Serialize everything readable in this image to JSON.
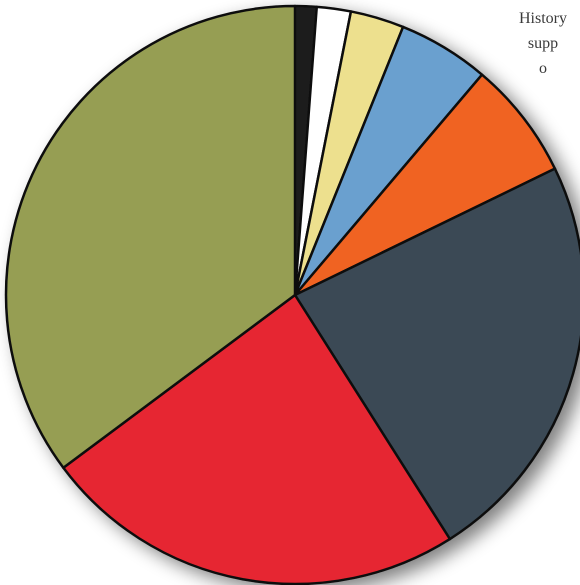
{
  "caption_fragment": "History\nsupp\no",
  "chart_data": {
    "type": "pie",
    "title": "",
    "start": "top",
    "direction": "clockwise",
    "slices": [
      {
        "value": 1.2,
        "color": "#1f1f1f",
        "name": "black"
      },
      {
        "value": 1.9,
        "color": "#ffffff",
        "name": "white"
      },
      {
        "value": 3.0,
        "color": "#ede08e",
        "name": "yellow"
      },
      {
        "value": 5.1,
        "color": "#6aa0cf",
        "name": "blue"
      },
      {
        "value": 6.6,
        "color": "#f06423",
        "name": "orange"
      },
      {
        "value": 23.2,
        "color": "#3a4a55",
        "name": "slate"
      },
      {
        "value": 23.8,
        "color": "#e62630",
        "name": "red"
      },
      {
        "value": 35.2,
        "color": "#969e52",
        "name": "olive"
      }
    ],
    "units": "percent",
    "legend": "none",
    "grid": false
  }
}
